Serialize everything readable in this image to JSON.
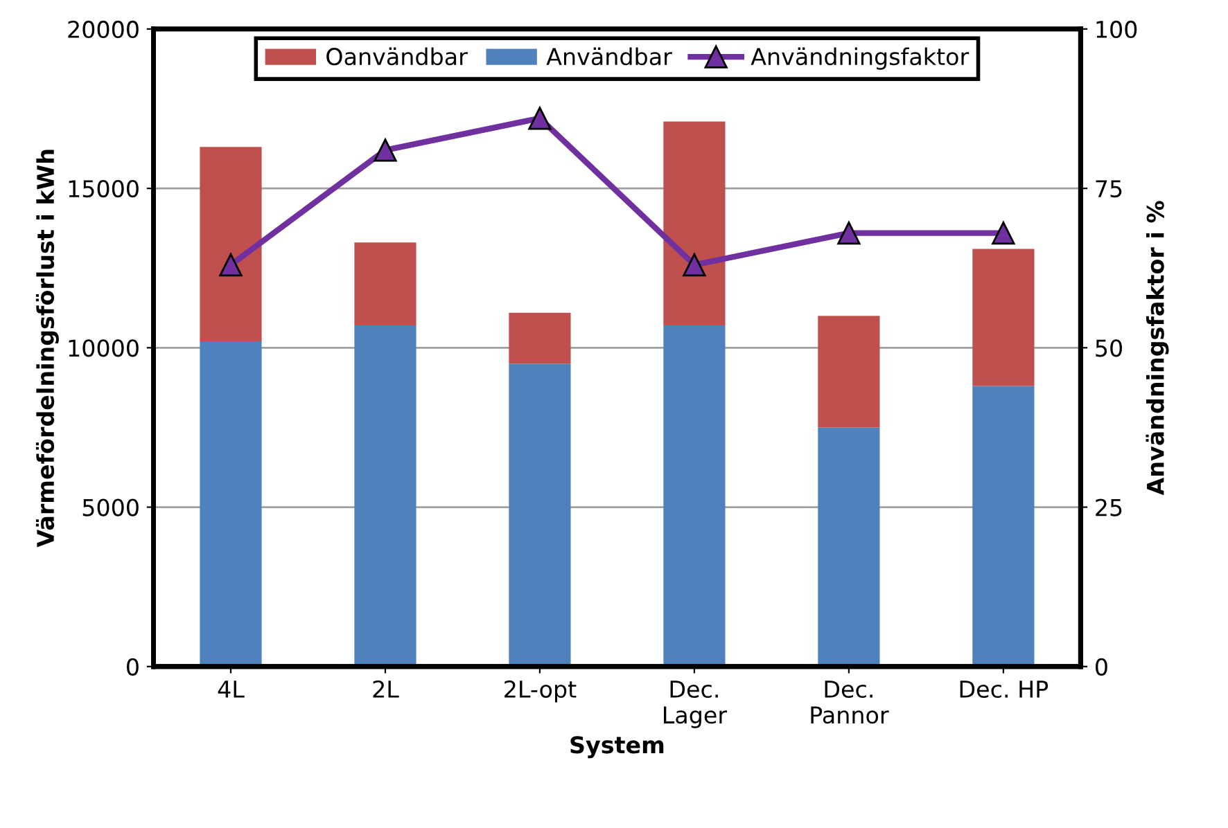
{
  "chart_data": {
    "type": "bar",
    "stacked": true,
    "xlabel": "System",
    "ylabel": "Värmefördelningsförlust i kWh",
    "y2label": "Användningsfaktor i %",
    "categories": [
      "4L",
      "2L",
      "2L-opt",
      "Dec.\nLager",
      "Dec.\nPannor",
      "Dec. HP"
    ],
    "series": [
      {
        "name": "Användbar",
        "color": "#4f81bd",
        "values": [
          10200,
          10700,
          9500,
          10700,
          7500,
          8800
        ]
      },
      {
        "name": "Oanvändbar",
        "color": "#c0504d",
        "values": [
          6100,
          2600,
          1600,
          6400,
          3500,
          4300
        ]
      },
      {
        "name": "Användningsfaktor",
        "type": "line",
        "axis": "y2",
        "color": "#7030a0",
        "marker": "triangle",
        "values": [
          63,
          81,
          86,
          63,
          68,
          68
        ]
      }
    ],
    "ylim": [
      0,
      20000
    ],
    "yticks": [
      0,
      5000,
      10000,
      15000,
      20000
    ],
    "y2lim": [
      0,
      100
    ],
    "y2ticks": [
      0,
      25,
      50,
      75,
      100
    ],
    "grid": "y",
    "legend": "top"
  }
}
